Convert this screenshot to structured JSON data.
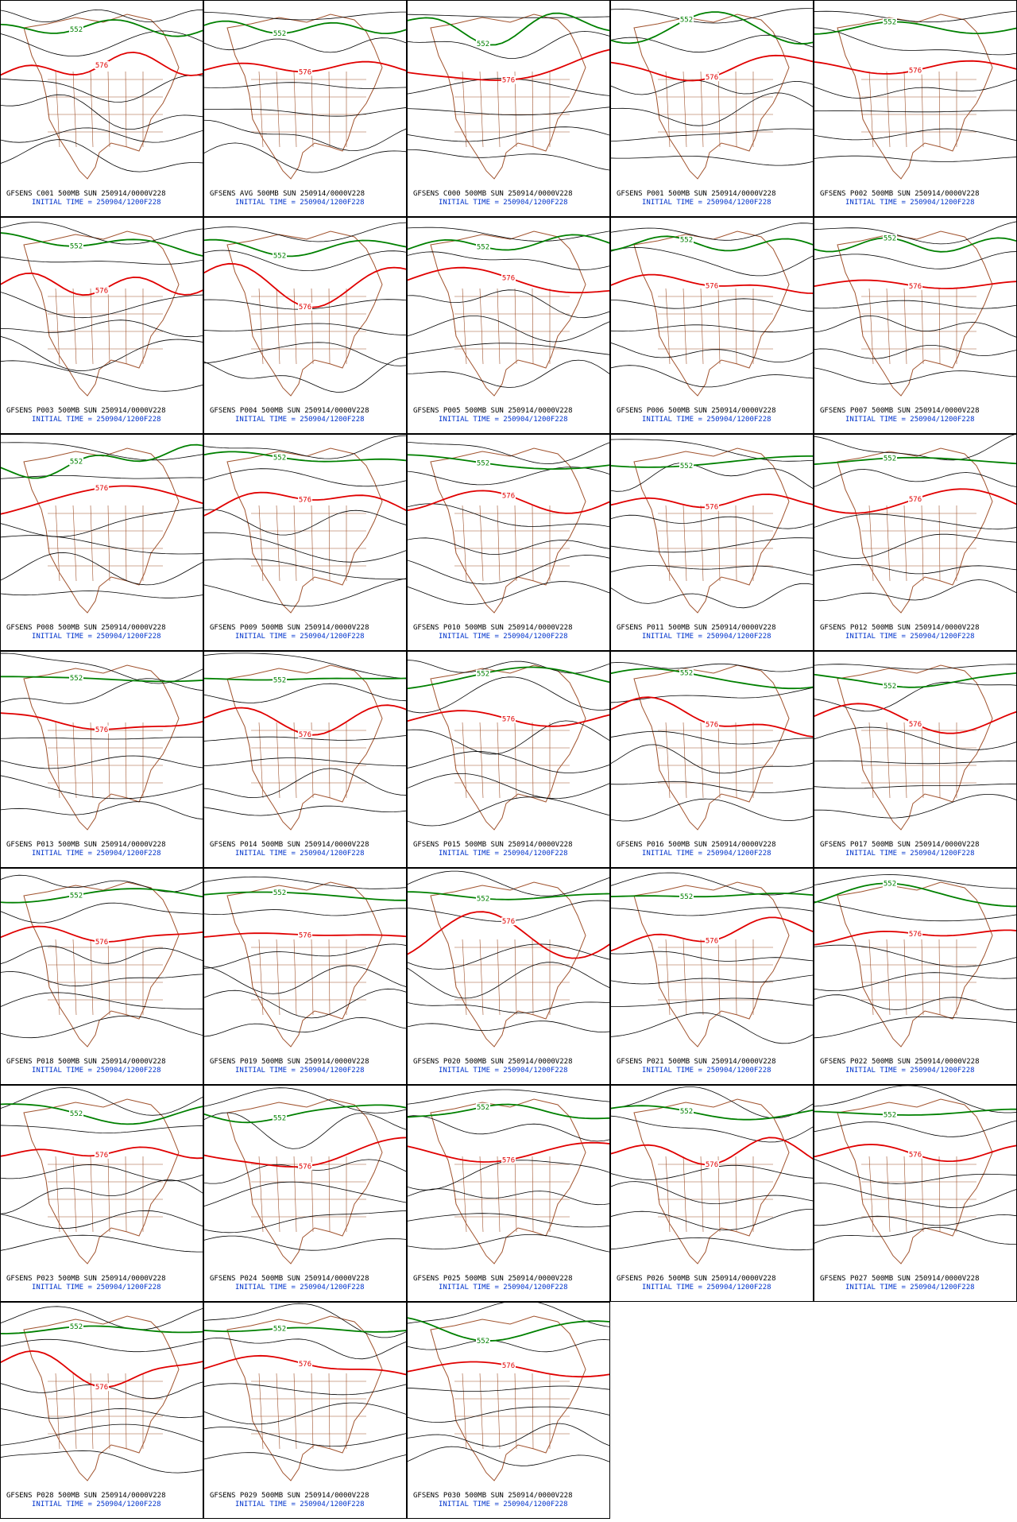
{
  "panels": [
    {
      "title": "GFSENS C001 500MB SUN 250914/0000V228",
      "init": "INITIAL TIME = 250904/1200F228",
      "labels": [
        "552",
        "576"
      ]
    },
    {
      "title": "GFSENS AVG 500MB SUN 250914/0000V228",
      "init": "INITIAL TIME = 250904/1200F228",
      "labels": [
        "552",
        "576"
      ]
    },
    {
      "title": "GFSENS C000 500MB SUN 250914/0000V228",
      "init": "INITIAL TIME = 250904/1200F228",
      "labels": [
        "552",
        "576"
      ]
    },
    {
      "title": "GFSENS P001 500MB SUN 250914/0000V228",
      "init": "INITIAL TIME = 250904/1200F228",
      "labels": [
        "552",
        "576"
      ]
    },
    {
      "title": "GFSENS P002 500MB SUN 250914/0000V228",
      "init": "INITIAL TIME = 250904/1200F228",
      "labels": [
        "552",
        "576"
      ]
    },
    {
      "title": "GFSENS P003 500MB SUN 250914/0000V228",
      "init": "INITIAL TIME = 250904/1200F228",
      "labels": [
        "552",
        "576"
      ]
    },
    {
      "title": "GFSENS P004 500MB SUN 250914/0000V228",
      "init": "INITIAL TIME = 250904/1200F228",
      "labels": [
        "552",
        "576"
      ]
    },
    {
      "title": "GFSENS P005 500MB SUN 250914/0000V228",
      "init": "INITIAL TIME = 250904/1200F228",
      "labels": [
        "552",
        "576"
      ]
    },
    {
      "title": "GFSENS P006 500MB SUN 250914/0000V228",
      "init": "INITIAL TIME = 250904/1200F228",
      "labels": [
        "552",
        "576"
      ]
    },
    {
      "title": "GFSENS P007 500MB SUN 250914/0000V228",
      "init": "INITIAL TIME = 250904/1200F228",
      "labels": [
        "552",
        "576"
      ]
    },
    {
      "title": "GFSENS P008 500MB SUN 250914/0000V228",
      "init": "INITIAL TIME = 250904/1200F228",
      "labels": [
        "552",
        "576"
      ]
    },
    {
      "title": "GFSENS P009 500MB SUN 250914/0000V228",
      "init": "INITIAL TIME = 250904/1200F228",
      "labels": [
        "552",
        "576"
      ]
    },
    {
      "title": "GFSENS P010 500MB SUN 250914/0000V228",
      "init": "INITIAL TIME = 250904/1200F228",
      "labels": [
        "552",
        "576"
      ]
    },
    {
      "title": "GFSENS P011 500MB SUN 250914/0000V228",
      "init": "INITIAL TIME = 250904/1200F228",
      "labels": [
        "552",
        "576"
      ]
    },
    {
      "title": "GFSENS P012 500MB SUN 250914/0000V228",
      "init": "INITIAL TIME = 250904/1200F228",
      "labels": [
        "552",
        "576"
      ]
    },
    {
      "title": "GFSENS P013 500MB SUN 250914/0000V228",
      "init": "INITIAL TIME = 250904/1200F228",
      "labels": [
        "552",
        "576"
      ]
    },
    {
      "title": "GFSENS P014 500MB SUN 250914/0000V228",
      "init": "INITIAL TIME = 250904/1200F228",
      "labels": [
        "552",
        "576"
      ]
    },
    {
      "title": "GFSENS P015 500MB SUN 250914/0000V228",
      "init": "INITIAL TIME = 250904/1200F228",
      "labels": [
        "552",
        "576"
      ]
    },
    {
      "title": "GFSENS P016 500MB SUN 250914/0000V228",
      "init": "INITIAL TIME = 250904/1200F228",
      "labels": [
        "552",
        "576"
      ]
    },
    {
      "title": "GFSENS P017 500MB SUN 250914/0000V228",
      "init": "INITIAL TIME = 250904/1200F228",
      "labels": [
        "552",
        "576"
      ]
    },
    {
      "title": "GFSENS P018 500MB SUN 250914/0000V228",
      "init": "INITIAL TIME = 250904/1200F228",
      "labels": [
        "552",
        "576"
      ]
    },
    {
      "title": "GFSENS P019 500MB SUN 250914/0000V228",
      "init": "INITIAL TIME = 250904/1200F228",
      "labels": [
        "552",
        "576"
      ]
    },
    {
      "title": "GFSENS P020 500MB SUN 250914/0000V228",
      "init": "INITIAL TIME = 250904/1200F228",
      "labels": [
        "552",
        "576"
      ]
    },
    {
      "title": "GFSENS P021 500MB SUN 250914/0000V228",
      "init": "INITIAL TIME = 250904/1200F228",
      "labels": [
        "552",
        "576"
      ]
    },
    {
      "title": "GFSENS P022 500MB SUN 250914/0000V228",
      "init": "INITIAL TIME = 250904/1200F228",
      "labels": [
        "552",
        "576"
      ]
    },
    {
      "title": "GFSENS P023 500MB SUN 250914/0000V228",
      "init": "INITIAL TIME = 250904/1200F228",
      "labels": [
        "552",
        "576"
      ]
    },
    {
      "title": "GFSENS P024 500MB SUN 250914/0000V228",
      "init": "INITIAL TIME = 250904/1200F228",
      "labels": [
        "552",
        "576"
      ]
    },
    {
      "title": "GFSENS P025 500MB SUN 250914/0000V228",
      "init": "INITIAL TIME = 250904/1200F228",
      "labels": [
        "552",
        "576"
      ]
    },
    {
      "title": "GFSENS P026 500MB SUN 250914/0000V228",
      "init": "INITIAL TIME = 250904/1200F228",
      "labels": [
        "552",
        "576"
      ]
    },
    {
      "title": "GFSENS P027 500MB SUN 250914/0000V228",
      "init": "INITIAL TIME = 250904/1200F228",
      "labels": [
        "552",
        "576"
      ]
    },
    {
      "title": "GFSENS P028 500MB SUN 250914/0000V228",
      "init": "INITIAL TIME = 250904/1200F228",
      "labels": [
        "552",
        "576"
      ]
    },
    {
      "title": "GFSENS P029 500MB SUN 250914/0000V228",
      "init": "INITIAL TIME = 250904/1200F228",
      "labels": [
        "552",
        "576"
      ]
    },
    {
      "title": "GFSENS P030 500MB SUN 250914/0000V228",
      "init": "INITIAL TIME = 250904/1200F228",
      "labels": [
        "552",
        "576"
      ]
    }
  ]
}
